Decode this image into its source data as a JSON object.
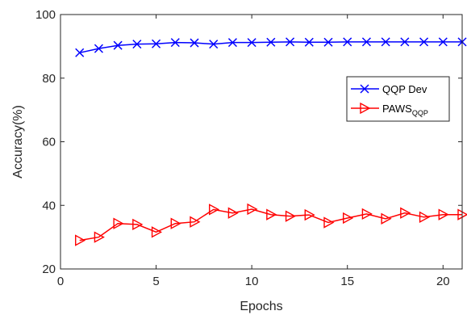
{
  "chart_data": {
    "type": "line",
    "xlabel": "Epochs",
    "ylabel": "Accuracy(%)",
    "xlim": [
      0,
      21
    ],
    "ylim": [
      20,
      100
    ],
    "xticks": [
      0,
      5,
      10,
      15,
      20
    ],
    "yticks": [
      20,
      40,
      60,
      80,
      100
    ],
    "grid": false,
    "legend_position": "right",
    "series": [
      {
        "name": "QQP Dev",
        "color": "#0000ff",
        "marker": "x",
        "x": [
          1,
          2,
          3,
          4,
          5,
          6,
          7,
          8,
          9,
          10,
          11,
          12,
          13,
          14,
          15,
          16,
          17,
          18,
          19,
          20,
          21
        ],
        "y": [
          88,
          89.3,
          90.3,
          90.7,
          90.8,
          91.2,
          91.1,
          90.7,
          91.2,
          91.2,
          91.3,
          91.4,
          91.3,
          91.3,
          91.4,
          91.4,
          91.4,
          91.4,
          91.4,
          91.4,
          91.4
        ]
      },
      {
        "name": "PAWS",
        "name_subscript": "QQP",
        "color": "#ff0000",
        "marker": "triangle-right",
        "x": [
          1,
          2,
          3,
          4,
          5,
          6,
          7,
          8,
          9,
          10,
          11,
          12,
          13,
          14,
          15,
          16,
          17,
          18,
          19,
          20,
          21
        ],
        "y": [
          29,
          30,
          34.3,
          34,
          31.6,
          34.3,
          34.8,
          38.7,
          37.6,
          38.8,
          37.1,
          36.6,
          37,
          34.6,
          36,
          37.3,
          35.8,
          37.6,
          36.3,
          37.1,
          37.1
        ]
      }
    ]
  }
}
